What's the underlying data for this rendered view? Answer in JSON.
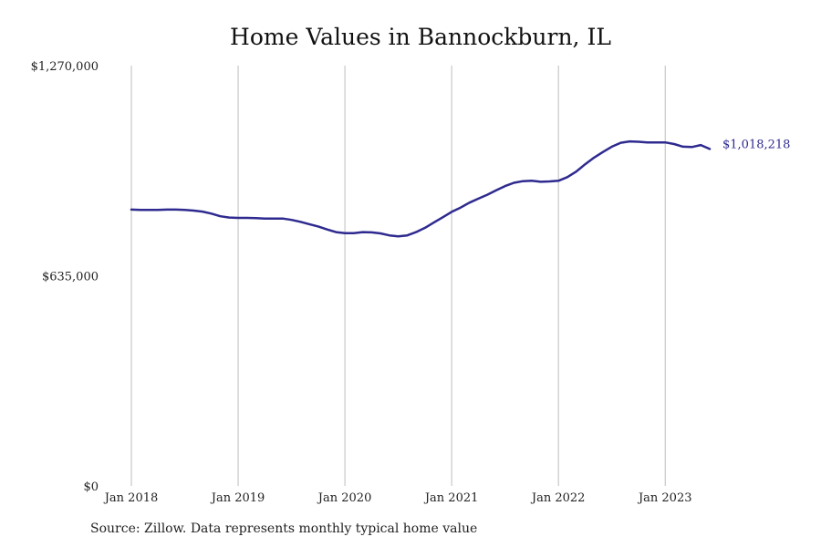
{
  "source": "Source: Zillow. Data represents monthly typical home value",
  "colors": {
    "line": "#2e2a8f",
    "grid": "#bdbdbd",
    "text": "#222222"
  },
  "chart_data": {
    "type": "line",
    "title": "Home Values in Bannockburn, IL",
    "xlabel": "",
    "ylabel": "",
    "x_ticks": [
      "Jan 2018",
      "Jan 2019",
      "Jan 2020",
      "Jan 2021",
      "Jan 2022",
      "Jan 2023"
    ],
    "y_ticks": [
      "$0",
      "$635,000",
      "$1,270,000"
    ],
    "y_tick_values": [
      0,
      635000,
      1270000
    ],
    "ylim": [
      0,
      1270000
    ],
    "xlim": [
      "2018-01",
      "2023-04"
    ],
    "grid": "vertical lines at x ticks",
    "end_label": "$1,018,218",
    "series": [
      {
        "x": [
          "2018-01",
          "2018-02",
          "2018-03",
          "2018-04",
          "2018-05",
          "2018-06",
          "2018-07",
          "2018-08",
          "2018-09",
          "2018-10",
          "2018-11",
          "2018-12",
          "2019-01",
          "2019-02",
          "2019-03",
          "2019-04",
          "2019-05",
          "2019-06",
          "2019-07",
          "2019-08",
          "2019-09",
          "2019-10",
          "2019-11",
          "2019-12",
          "2020-01",
          "2020-02",
          "2020-03",
          "2020-04",
          "2020-05",
          "2020-06",
          "2020-07",
          "2020-08",
          "2020-09",
          "2020-10",
          "2020-11",
          "2020-12",
          "2021-01",
          "2021-02",
          "2021-03",
          "2021-04",
          "2021-05",
          "2021-06",
          "2021-07",
          "2021-08",
          "2021-09",
          "2021-10",
          "2021-11",
          "2021-12",
          "2022-01",
          "2022-02",
          "2022-03",
          "2022-04",
          "2022-05",
          "2022-06",
          "2022-07",
          "2022-08",
          "2022-09",
          "2022-10",
          "2022-11",
          "2022-12",
          "2023-01",
          "2023-02",
          "2023-03",
          "2023-04",
          "2023-05",
          "2023-06"
        ],
        "values": [
          835000,
          834000,
          834000,
          834000,
          835000,
          835000,
          834000,
          832000,
          829000,
          823000,
          815000,
          811000,
          810000,
          810000,
          809000,
          808000,
          808000,
          808000,
          804000,
          798000,
          791000,
          784000,
          775000,
          767000,
          764000,
          764000,
          767000,
          766000,
          763000,
          757000,
          754000,
          757000,
          767000,
          780000,
          796000,
          812000,
          828000,
          841000,
          856000,
          868000,
          880000,
          893000,
          906000,
          916000,
          921000,
          922000,
          919000,
          920000,
          922000,
          933000,
          950000,
          972000,
          992000,
          1009000,
          1025000,
          1037000,
          1041000,
          1040000,
          1038000,
          1038000,
          1038000,
          1033000,
          1025000,
          1024000,
          1030000,
          1018218
        ]
      }
    ]
  }
}
